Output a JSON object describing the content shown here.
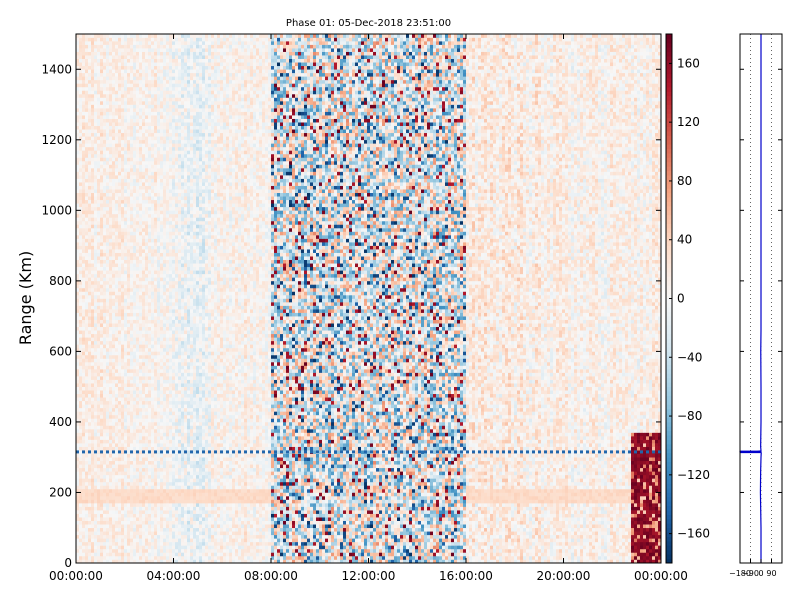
{
  "chart_data": [
    {
      "type": "heatmap",
      "title": "Phase 01: 05-Dec-2018 23:51:00",
      "xlabel": "",
      "ylabel": "Range (Km)",
      "xlim": [
        "00:00:00",
        "24:00:00"
      ],
      "ylim": [
        0,
        1500
      ],
      "x_ticks": [
        "00:00:00",
        "04:00:00",
        "08:00:00",
        "12:00:00",
        "16:00:00",
        "20:00:00",
        "00:00:00"
      ],
      "y_ticks": [
        0,
        200,
        400,
        600,
        800,
        1000,
        1200,
        1400
      ],
      "colorbar": {
        "ticks": [
          -160,
          -120,
          -80,
          -40,
          0,
          40,
          80,
          120,
          160
        ],
        "range": [
          -180,
          180
        ],
        "colormap": "RdBu_r",
        "low_color": "#053061",
        "mid_color": "#f7f7f7",
        "high_color": "#67001f"
      },
      "features": {
        "noisy_band_hours": [
          8,
          16
        ],
        "high_phase_block_hours": [
          22.8,
          24
        ],
        "high_phase_block_range_km": [
          0,
          370
        ],
        "interference_line_range_km": 315,
        "warm_band_range_km": [
          170,
          210
        ]
      },
      "grid": false
    },
    {
      "type": "line",
      "title": "",
      "xlabel": "",
      "ylabel": "",
      "x_ticks": [
        "−180",
        "−90",
        "0",
        "90"
      ],
      "xlim": [
        -180,
        180
      ],
      "ylim": [
        0,
        1500
      ],
      "grid": true,
      "series": [
        {
          "x": [
            0,
            0,
            -5,
            -3,
            0,
            2,
            0,
            0,
            0,
            0,
            0,
            0,
            -45,
            -180,
            -180,
            -30,
            0,
            -3,
            0,
            0,
            -2,
            0,
            0,
            0,
            0,
            0,
            0,
            0,
            0,
            0,
            0
          ],
          "y": [
            0,
            100,
            200,
            260,
            300,
            312,
            313,
            314,
            314.5,
            315,
            315.2,
            315.4,
            315.6,
            315.8,
            316.2,
            316.6,
            318,
            330,
            400,
            500,
            600,
            660,
            665,
            700,
            800,
            900,
            1000,
            1100,
            1200,
            1400,
            1500
          ],
          "color": "#0000cc"
        }
      ]
    }
  ]
}
